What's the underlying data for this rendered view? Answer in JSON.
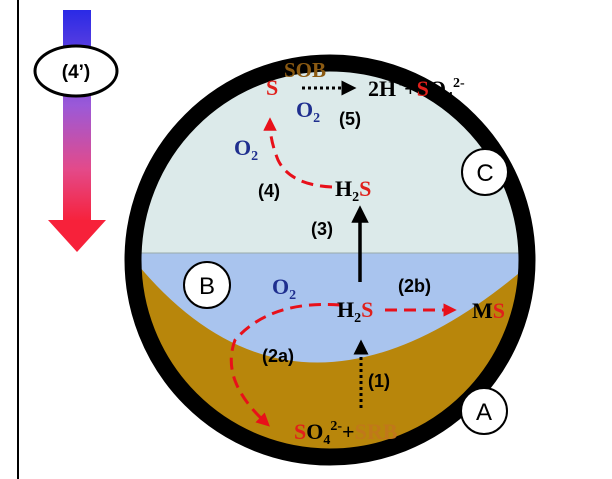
{
  "colors": {
    "chem_black": "#000000",
    "sulfur_red": "#e0201b",
    "oxygen_blue": "#1f2f8f",
    "sob_brown": "#8b5a12",
    "srb_brown": "#c0781a",
    "sediment": "#b8860b",
    "water_lower": "#a9c4ee",
    "water_upper": "#dceaea",
    "surface_green": "#8ab826",
    "ring": "#000000",
    "arrow_red": "#e8101a"
  },
  "zones": {
    "a": "A",
    "b": "B",
    "c": "C"
  },
  "gradient_label": "(4’)",
  "steps": {
    "s1": "(1)",
    "s2a": "(2a)",
    "s2b": "(2b)",
    "s3": "(3)",
    "s4": "(4)",
    "s5": "(5)"
  },
  "chem": {
    "sob": "SOB",
    "srb": "SRB",
    "plus": "+",
    "s": "S",
    "o2": "O",
    "two": "2",
    "h2s_h": "H",
    "h2s_sub": "2",
    "h2s_s": "S",
    "h_plus": "2H",
    "sup_plus": "+",
    "so4_s": "S",
    "so4_o": "O",
    "so4_sub": "4",
    "so4_sup": "2-",
    "ms_m": "M",
    "ms_s": "S"
  }
}
